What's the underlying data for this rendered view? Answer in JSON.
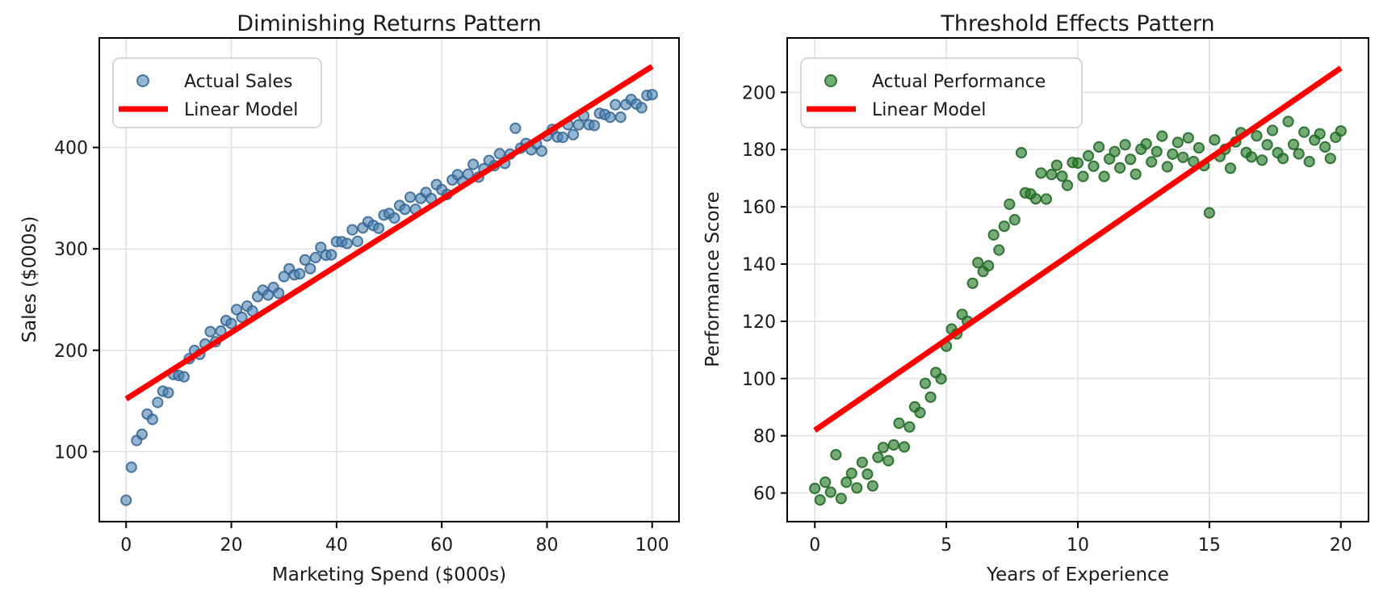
{
  "figure": {
    "background": "#ffffff",
    "text_color": "#1a1a1a",
    "grid_color": "#e0e0e0",
    "spine_color": "#000000"
  },
  "chart_data": [
    {
      "type": "scatter",
      "title": "Diminishing Returns Pattern",
      "xlabel": "Marketing Spend ($000s)",
      "ylabel": "Sales ($000s)",
      "xlim": [
        -5.1,
        105.1
      ],
      "ylim": [
        31,
        508
      ],
      "xticks": [
        0,
        20,
        40,
        60,
        80,
        100
      ],
      "yticks": [
        100,
        200,
        300,
        400
      ],
      "grid": true,
      "legend": {
        "position": "upper-left",
        "entries": [
          {
            "label": "Actual Sales",
            "type": "marker"
          },
          {
            "label": "Linear Model",
            "type": "line"
          }
        ]
      },
      "series": [
        {
          "name": "Actual Sales",
          "type": "scatter",
          "base_color": "#4682b4",
          "marker_fill": "rgba(70,130,180,0.58)",
          "marker_edge": "rgba(52,100,142,0.85)",
          "points": [
            [
              0,
              52.1
            ],
            [
              1,
              84.7
            ],
            [
              2,
              111.0
            ],
            [
              3,
              117.1
            ],
            [
              4,
              137.1
            ],
            [
              5,
              131.8
            ],
            [
              6,
              148.5
            ],
            [
              7,
              159.6
            ],
            [
              8,
              158.2
            ],
            [
              9,
              176.2
            ],
            [
              10,
              175.1
            ],
            [
              11,
              173.9
            ],
            [
              12,
              191.7
            ],
            [
              13,
              199.8
            ],
            [
              14,
              196.0
            ],
            [
              15,
              206.1
            ],
            [
              16,
              218.4
            ],
            [
              17,
              208.4
            ],
            [
              18,
              218.9
            ],
            [
              19,
              229.3
            ],
            [
              20,
              226.3
            ],
            [
              21,
              240.1
            ],
            [
              22,
              232.5
            ],
            [
              23,
              243.5
            ],
            [
              24,
              238.8
            ],
            [
              25,
              252.9
            ],
            [
              26,
              259.2
            ],
            [
              27,
              254.5
            ],
            [
              28,
              261.9
            ],
            [
              29,
              256.3
            ],
            [
              30,
              272.7
            ],
            [
              31,
              280.4
            ],
            [
              32,
              274.4
            ],
            [
              33,
              275.4
            ],
            [
              34,
              289.1
            ],
            [
              35,
              280.5
            ],
            [
              36,
              291.4
            ],
            [
              37,
              301.4
            ],
            [
              38,
              293.8
            ],
            [
              39,
              294.1
            ],
            [
              40,
              307.1
            ],
            [
              41,
              307.0
            ],
            [
              42,
              305.3
            ],
            [
              43,
              318.8
            ],
            [
              44,
              307.4
            ],
            [
              45,
              320.7
            ],
            [
              46,
              326.7
            ],
            [
              47,
              323.1
            ],
            [
              48,
              320.3
            ],
            [
              49,
              333.4
            ],
            [
              50,
              334.9
            ],
            [
              51,
              330.4
            ],
            [
              52,
              342.8
            ],
            [
              53,
              339.0
            ],
            [
              54,
              351.0
            ],
            [
              55,
              339.0
            ],
            [
              56,
              349.8
            ],
            [
              57,
              355.7
            ],
            [
              58,
              349.7
            ],
            [
              59,
              363.4
            ],
            [
              60,
              358.4
            ],
            [
              61,
              353.6
            ],
            [
              62,
              368.0
            ],
            [
              63,
              373.1
            ],
            [
              64,
              366.3
            ],
            [
              65,
              373.7
            ],
            [
              66,
              383.4
            ],
            [
              67,
              370.9
            ],
            [
              68,
              379.0
            ],
            [
              69,
              387.2
            ],
            [
              70,
              382.1
            ],
            [
              71,
              393.8
            ],
            [
              72,
              384.3
            ],
            [
              73,
              393.5
            ],
            [
              74,
              419.0
            ],
            [
              75,
              399.3
            ],
            [
              76,
              403.9
            ],
            [
              77,
              397.7
            ],
            [
              78,
              403.5
            ],
            [
              79,
              396.4
            ],
            [
              80,
              411.4
            ],
            [
              81,
              417.7
            ],
            [
              82,
              410.3
            ],
            [
              83,
              410.0
            ],
            [
              84,
              422.5
            ],
            [
              85,
              412.7
            ],
            [
              86,
              422.3
            ],
            [
              87,
              431.2
            ],
            [
              88,
              422.4
            ],
            [
              89,
              421.7
            ],
            [
              90,
              433.6
            ],
            [
              91,
              432.5
            ],
            [
              92,
              429.8
            ],
            [
              93,
              442.2
            ],
            [
              94,
              429.9
            ],
            [
              95,
              442.3
            ],
            [
              96,
              447.3
            ],
            [
              97,
              442.9
            ],
            [
              98,
              439.2
            ],
            [
              99,
              451.4
            ],
            [
              100,
              452.1
            ]
          ]
        },
        {
          "name": "Linear Model",
          "type": "line",
          "color": "#ff0000",
          "width": 7,
          "points": [
            [
              0,
              152
            ],
            [
              100,
              480
            ]
          ]
        }
      ]
    },
    {
      "type": "scatter",
      "title": "Threshold Effects Pattern",
      "xlabel": "Years of Experience",
      "ylabel": "Performance Score",
      "xlim": [
        -1.05,
        21.05
      ],
      "ylim": [
        50,
        219
      ],
      "xticks": [
        0,
        5,
        10,
        15,
        20
      ],
      "yticks": [
        60,
        80,
        100,
        120,
        140,
        160,
        180,
        200
      ],
      "grid": true,
      "legend": {
        "position": "upper-left",
        "entries": [
          {
            "label": "Actual Performance",
            "type": "marker"
          },
          {
            "label": "Linear Model",
            "type": "line"
          }
        ]
      },
      "series": [
        {
          "name": "Actual Performance",
          "type": "scatter",
          "base_color": "#2e7d32",
          "marker_fill": "rgba(30,120,35,0.62)",
          "marker_edge": "rgba(35,105,40,0.9)",
          "points": [
            [
              0,
              61.6
            ],
            [
              0.2,
              57.6
            ],
            [
              0.4,
              63.8
            ],
            [
              0.6,
              60.3
            ],
            [
              0.8,
              73.4
            ],
            [
              1,
              58.1
            ],
            [
              1.2,
              63.8
            ],
            [
              1.4,
              66.9
            ],
            [
              1.6,
              61.8
            ],
            [
              1.8,
              70.7
            ],
            [
              2,
              66.6
            ],
            [
              2.2,
              62.5
            ],
            [
              2.4,
              72.5
            ],
            [
              2.6,
              75.9
            ],
            [
              2.8,
              71.3
            ],
            [
              3,
              76.8
            ],
            [
              3.2,
              84.4
            ],
            [
              3.4,
              76.1
            ],
            [
              3.6,
              83.1
            ],
            [
              3.8,
              90.1
            ],
            [
              4,
              88.1
            ],
            [
              4.2,
              98.3
            ],
            [
              4.4,
              93.5
            ],
            [
              4.6,
              102.1
            ],
            [
              4.8,
              99.9
            ],
            [
              5,
              111.3
            ],
            [
              5.2,
              117.3
            ],
            [
              5.4,
              115.6
            ],
            [
              5.6,
              122.4
            ],
            [
              5.8,
              120.0
            ],
            [
              6,
              133.3
            ],
            [
              6.2,
              140.5
            ],
            [
              6.4,
              137.4
            ],
            [
              6.6,
              139.4
            ],
            [
              6.8,
              150.2
            ],
            [
              7,
              144.9
            ],
            [
              7.2,
              153.2
            ],
            [
              7.4,
              160.9
            ],
            [
              7.6,
              155.5
            ],
            [
              7.85,
              178.9
            ],
            [
              8,
              164.9
            ],
            [
              8.2,
              164.5
            ],
            [
              8.4,
              162.8
            ],
            [
              8.6,
              171.8
            ],
            [
              8.8,
              162.7
            ],
            [
              9,
              171.3
            ],
            [
              9.2,
              174.5
            ],
            [
              9.4,
              170.7
            ],
            [
              9.6,
              167.5
            ],
            [
              9.8,
              175.5
            ],
            [
              10,
              175.3
            ],
            [
              10.2,
              170.6
            ],
            [
              10.4,
              177.8
            ],
            [
              10.6,
              174.2
            ],
            [
              10.8,
              180.9
            ],
            [
              11,
              170.6
            ],
            [
              11.2,
              176.7
            ],
            [
              11.4,
              179.3
            ],
            [
              11.6,
              173.6
            ],
            [
              11.8,
              181.7
            ],
            [
              12,
              176.6
            ],
            [
              12.2,
              171.4
            ],
            [
              12.4,
              180.1
            ],
            [
              12.6,
              182.0
            ],
            [
              12.8,
              175.7
            ],
            [
              13,
              179.3
            ],
            [
              13.2,
              184.7
            ],
            [
              13.4,
              174.0
            ],
            [
              13.6,
              178.4
            ],
            [
              13.8,
              182.5
            ],
            [
              14,
              177.3
            ],
            [
              14.2,
              184.1
            ],
            [
              14.4,
              175.8
            ],
            [
              14.6,
              180.6
            ],
            [
              14.8,
              174.4
            ],
            [
              15,
              157.9
            ],
            [
              15.2,
              183.4
            ],
            [
              15.4,
              177.6
            ],
            [
              15.6,
              180.1
            ],
            [
              15.8,
              173.5
            ],
            [
              16,
              182.7
            ],
            [
              16.2,
              185.9
            ],
            [
              16.4,
              179.0
            ],
            [
              16.6,
              177.4
            ],
            [
              16.8,
              184.8
            ],
            [
              17,
              176.3
            ],
            [
              17.2,
              181.7
            ],
            [
              17.4,
              186.7
            ],
            [
              17.6,
              178.9
            ],
            [
              17.8,
              176.9
            ],
            [
              18,
              189.8
            ],
            [
              18.2,
              181.8
            ],
            [
              18.4,
              178.5
            ],
            [
              18.6,
              186.1
            ],
            [
              18.8,
              175.8
            ],
            [
              19,
              183.3
            ],
            [
              19.2,
              185.5
            ],
            [
              19.4,
              180.9
            ],
            [
              19.6,
              176.9
            ],
            [
              19.8,
              184.3
            ],
            [
              20,
              186.5
            ]
          ]
        },
        {
          "name": "Linear Model",
          "type": "line",
          "color": "#ff0000",
          "width": 7,
          "points": [
            [
              0,
              81.9
            ],
            [
              20,
              208.5
            ]
          ]
        }
      ]
    }
  ]
}
